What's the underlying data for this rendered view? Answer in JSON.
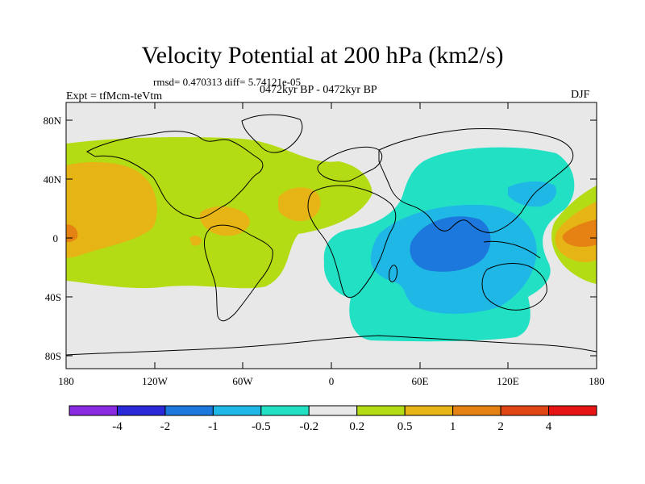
{
  "title": "Velocity Potential at 200 hPa (km2/s)",
  "stats": "rmsd= 0.470313 diff= 5.74121e-05",
  "experiment": "Expt = tfMcm-teVtm",
  "period": "0472kyr BP - 0472kyr BP",
  "season": "DJF",
  "axes": {
    "lat_ticks": [
      "80N",
      "40N",
      "0",
      "40S",
      "80S"
    ],
    "lon_ticks": [
      "180",
      "120W",
      "60W",
      "0",
      "60E",
      "120E",
      "180"
    ]
  },
  "colorbar": {
    "colors": [
      "#8a2be2",
      "#2a2ad8",
      "#1c78dc",
      "#1fb8e6",
      "#22e0c4",
      "#e8e8e8",
      "#b4dc14",
      "#e6b414",
      "#e68214",
      "#e04614",
      "#e61414"
    ],
    "labels": [
      "-4",
      "-2",
      "-1",
      "-0.5",
      "-0.2",
      "0.2",
      "0.5",
      "1",
      "2",
      "4"
    ]
  },
  "colors": {
    "background": "#e8e8e8",
    "positive_weak": "#b4dc14",
    "positive_mid": "#e6b414",
    "positive_strong": "#e68214",
    "negative_weak": "#22e0c4",
    "negative_mid": "#1fb8e6",
    "negative_strong": "#1c78dc"
  }
}
